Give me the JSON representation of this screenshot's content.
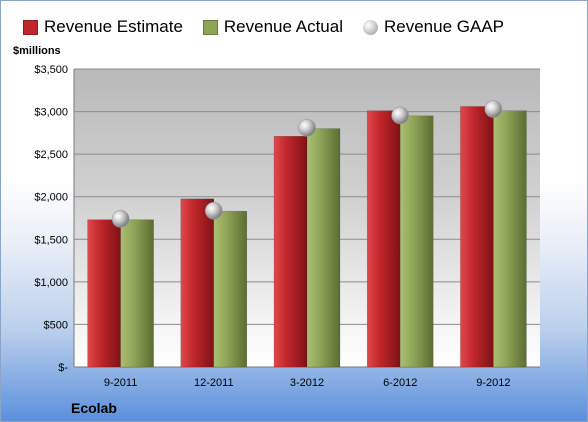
{
  "legend": [
    {
      "label": "Revenue Estimate",
      "color": "#c0262b",
      "marker": "square"
    },
    {
      "label": "Revenue Actual",
      "color": "#8ea456",
      "marker": "square"
    },
    {
      "label": "Revenue GAAP",
      "color": "#b5b5b5",
      "marker": "circle"
    }
  ],
  "unit_label": "$millions",
  "company": "Ecolab",
  "chart_data": {
    "type": "bar",
    "categories": [
      "9-2011",
      "12-2011",
      "3-2012",
      "6-2012",
      "9-2012"
    ],
    "series": [
      {
        "name": "Revenue Estimate",
        "type": "bar",
        "color": "#c0262b",
        "values": [
          1730,
          1975,
          2710,
          3010,
          3060
        ]
      },
      {
        "name": "Revenue Actual",
        "type": "bar",
        "color": "#8ea456",
        "values": [
          1730,
          1830,
          2800,
          2950,
          3010
        ]
      },
      {
        "name": "Revenue GAAP",
        "type": "scatter",
        "color": "#b5b5b5",
        "values": [
          1740,
          1835,
          2810,
          2955,
          3030
        ]
      }
    ],
    "ylabel": "$millions",
    "ylim": [
      0,
      3500
    ],
    "yticks": [
      0,
      500,
      1000,
      1500,
      2000,
      2500,
      3000,
      3500
    ],
    "ytick_labels": [
      "$-",
      "$500",
      "$1,000",
      "$1,500",
      "$2,000",
      "$2,500",
      "$3,000",
      "$3,500"
    ],
    "grid": true,
    "legend_position": "top"
  }
}
